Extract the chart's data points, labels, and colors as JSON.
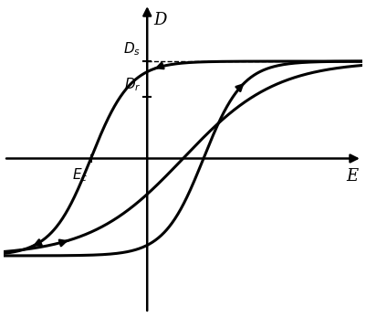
{
  "xlabel_text": "E",
  "ylabel_text": "D",
  "Ds_label": "$D_s$",
  "Dr_label": "$D_r$",
  "Ec_label": "$E_c$",
  "xlim": [
    -2.8,
    4.2
  ],
  "ylim": [
    -3.5,
    3.5
  ],
  "Ds_value": 2.2,
  "Dr_value": 1.4,
  "Ec_value": -1.1,
  "line_color": "#000000",
  "bg_color": "#ffffff",
  "lw": 2.2
}
